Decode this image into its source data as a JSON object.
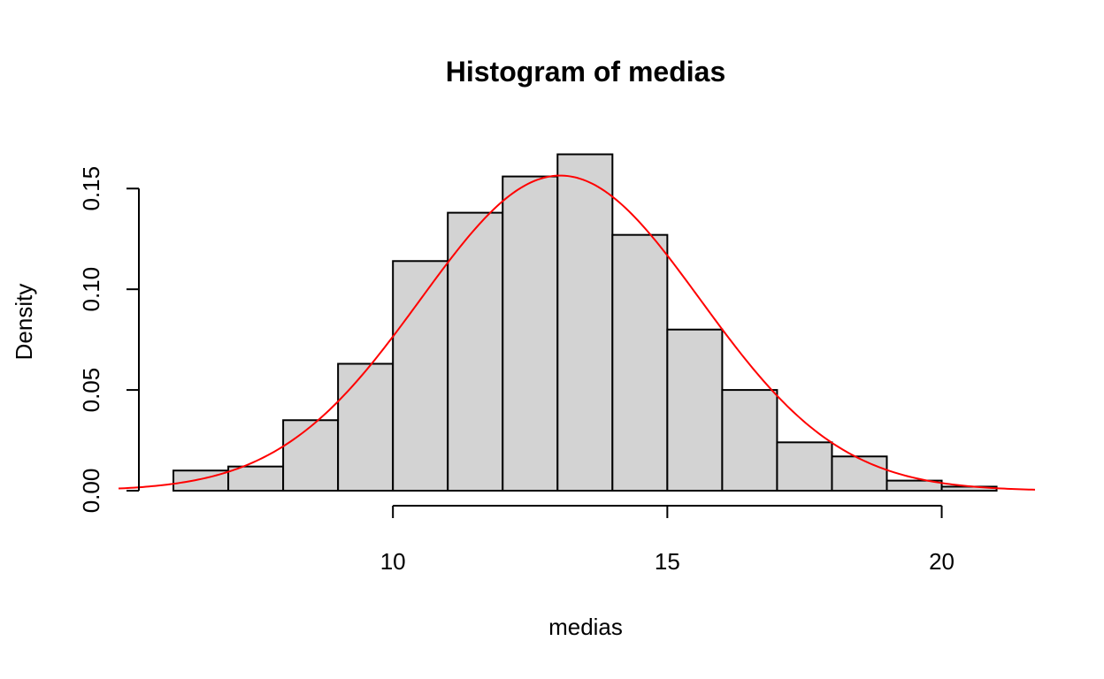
{
  "chart_data": {
    "type": "bar",
    "title": "Histogram of medias",
    "xlabel": "medias",
    "ylabel": "Density",
    "bins": [
      {
        "x0": 6,
        "x1": 7,
        "density": 0.01
      },
      {
        "x0": 7,
        "x1": 8,
        "density": 0.012
      },
      {
        "x0": 8,
        "x1": 9,
        "density": 0.035
      },
      {
        "x0": 9,
        "x1": 10,
        "density": 0.063
      },
      {
        "x0": 10,
        "x1": 11,
        "density": 0.114
      },
      {
        "x0": 11,
        "x1": 12,
        "density": 0.138
      },
      {
        "x0": 12,
        "x1": 13,
        "density": 0.156
      },
      {
        "x0": 13,
        "x1": 14,
        "density": 0.167
      },
      {
        "x0": 14,
        "x1": 15,
        "density": 0.127
      },
      {
        "x0": 15,
        "x1": 16,
        "density": 0.08
      },
      {
        "x0": 16,
        "x1": 17,
        "density": 0.05
      },
      {
        "x0": 17,
        "x1": 18,
        "density": 0.024
      },
      {
        "x0": 18,
        "x1": 19,
        "density": 0.017
      },
      {
        "x0": 19,
        "x1": 20,
        "density": 0.005
      },
      {
        "x0": 20,
        "x1": 21,
        "density": 0.002
      }
    ],
    "xlim": [
      5,
      21.7
    ],
    "ylim": [
      0,
      0.17
    ],
    "x_ticks": [
      "10",
      "15",
      "20"
    ],
    "y_ticks": [
      "0.00",
      "0.05",
      "0.10",
      "0.15"
    ],
    "curve": {
      "type": "normal-density",
      "mean": 13.05,
      "sd": 2.55,
      "color": "#ff0000"
    },
    "bar_color": "#d3d3d3",
    "grid": false,
    "legend": "none"
  }
}
